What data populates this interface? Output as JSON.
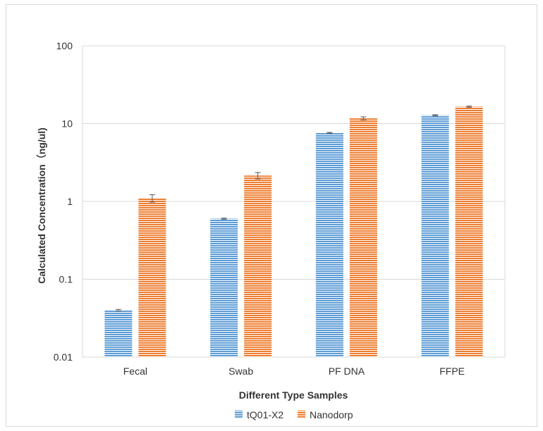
{
  "chart_data": {
    "type": "bar",
    "title": "",
    "xlabel": "Different Type Samples",
    "ylabel": "Calculated Concentration（ng/ul)",
    "y_scale": "log",
    "ylim": [
      0.01,
      100
    ],
    "y_ticks": [
      0.01,
      0.1,
      1,
      10,
      100
    ],
    "y_tick_labels": [
      "0.01",
      "0.1",
      "1",
      "10",
      "100"
    ],
    "categories": [
      "Fecal",
      "Swab",
      "PF DNA",
      "FFPE"
    ],
    "series": [
      {
        "name": "tQ01-X2",
        "values": [
          0.04,
          0.6,
          7.6,
          12.8
        ],
        "error": [
          0.001,
          0.01,
          0.1,
          0.2
        ],
        "color": "#5b9bd5"
      },
      {
        "name": "Nanodorp",
        "values": [
          1.1,
          2.15,
          11.7,
          16.5
        ],
        "error": [
          0.12,
          0.2,
          0.5,
          0.3
        ],
        "color": "#ed7d31"
      }
    ],
    "grid": "horizontal",
    "legend": "bottom"
  }
}
